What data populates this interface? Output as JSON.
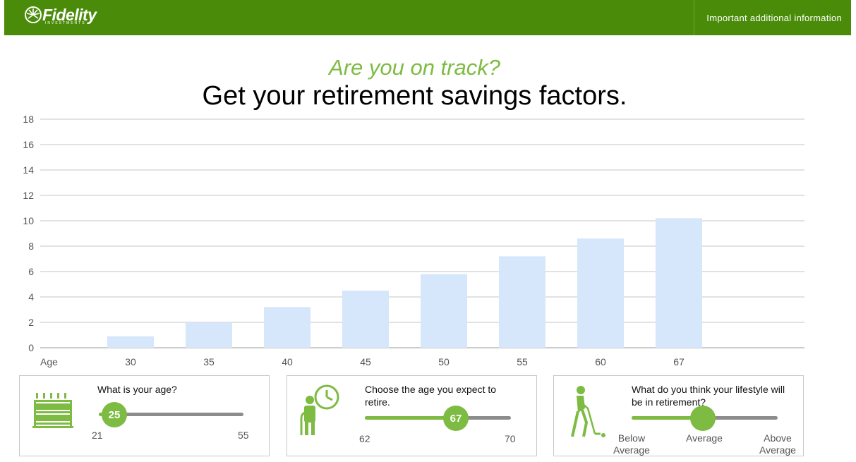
{
  "header": {
    "logo_text": "Fidelity",
    "logo_sub": "INVESTMENTS",
    "info_link": "Important additional information"
  },
  "subtitle": "Are you on track?",
  "title": "Get your retirement savings factors.",
  "colors": {
    "brand": "#4a8c0a",
    "accent": "#7dbb42",
    "bar": "#d6e6fb",
    "track": "#8c8c8c"
  },
  "chart_data": {
    "type": "bar",
    "x_title": "Age",
    "categories": [
      "30",
      "35",
      "40",
      "45",
      "50",
      "55",
      "60",
      "67"
    ],
    "values": [
      0.9,
      2.0,
      3.2,
      4.5,
      5.8,
      7.2,
      8.6,
      10.2
    ],
    "ylim": [
      0,
      18
    ],
    "yticks": [
      0,
      2,
      4,
      6,
      8,
      10,
      12,
      14,
      16,
      18
    ],
    "grid": true
  },
  "panels": {
    "age": {
      "icon": "birthday-cake-icon",
      "question": "What is your age?",
      "value": "25",
      "min": "21",
      "max": "55"
    },
    "retire": {
      "icon": "retiree-clock-icon",
      "question": "Choose the age you expect to retire.",
      "value": "67",
      "min": "62",
      "max": "70"
    },
    "lifestyle": {
      "icon": "golfer-icon",
      "question": "What do you think your lifestyle will be in retirement?",
      "options": [
        "Below Average",
        "Average",
        "Above Average"
      ],
      "selected": "Average"
    }
  }
}
